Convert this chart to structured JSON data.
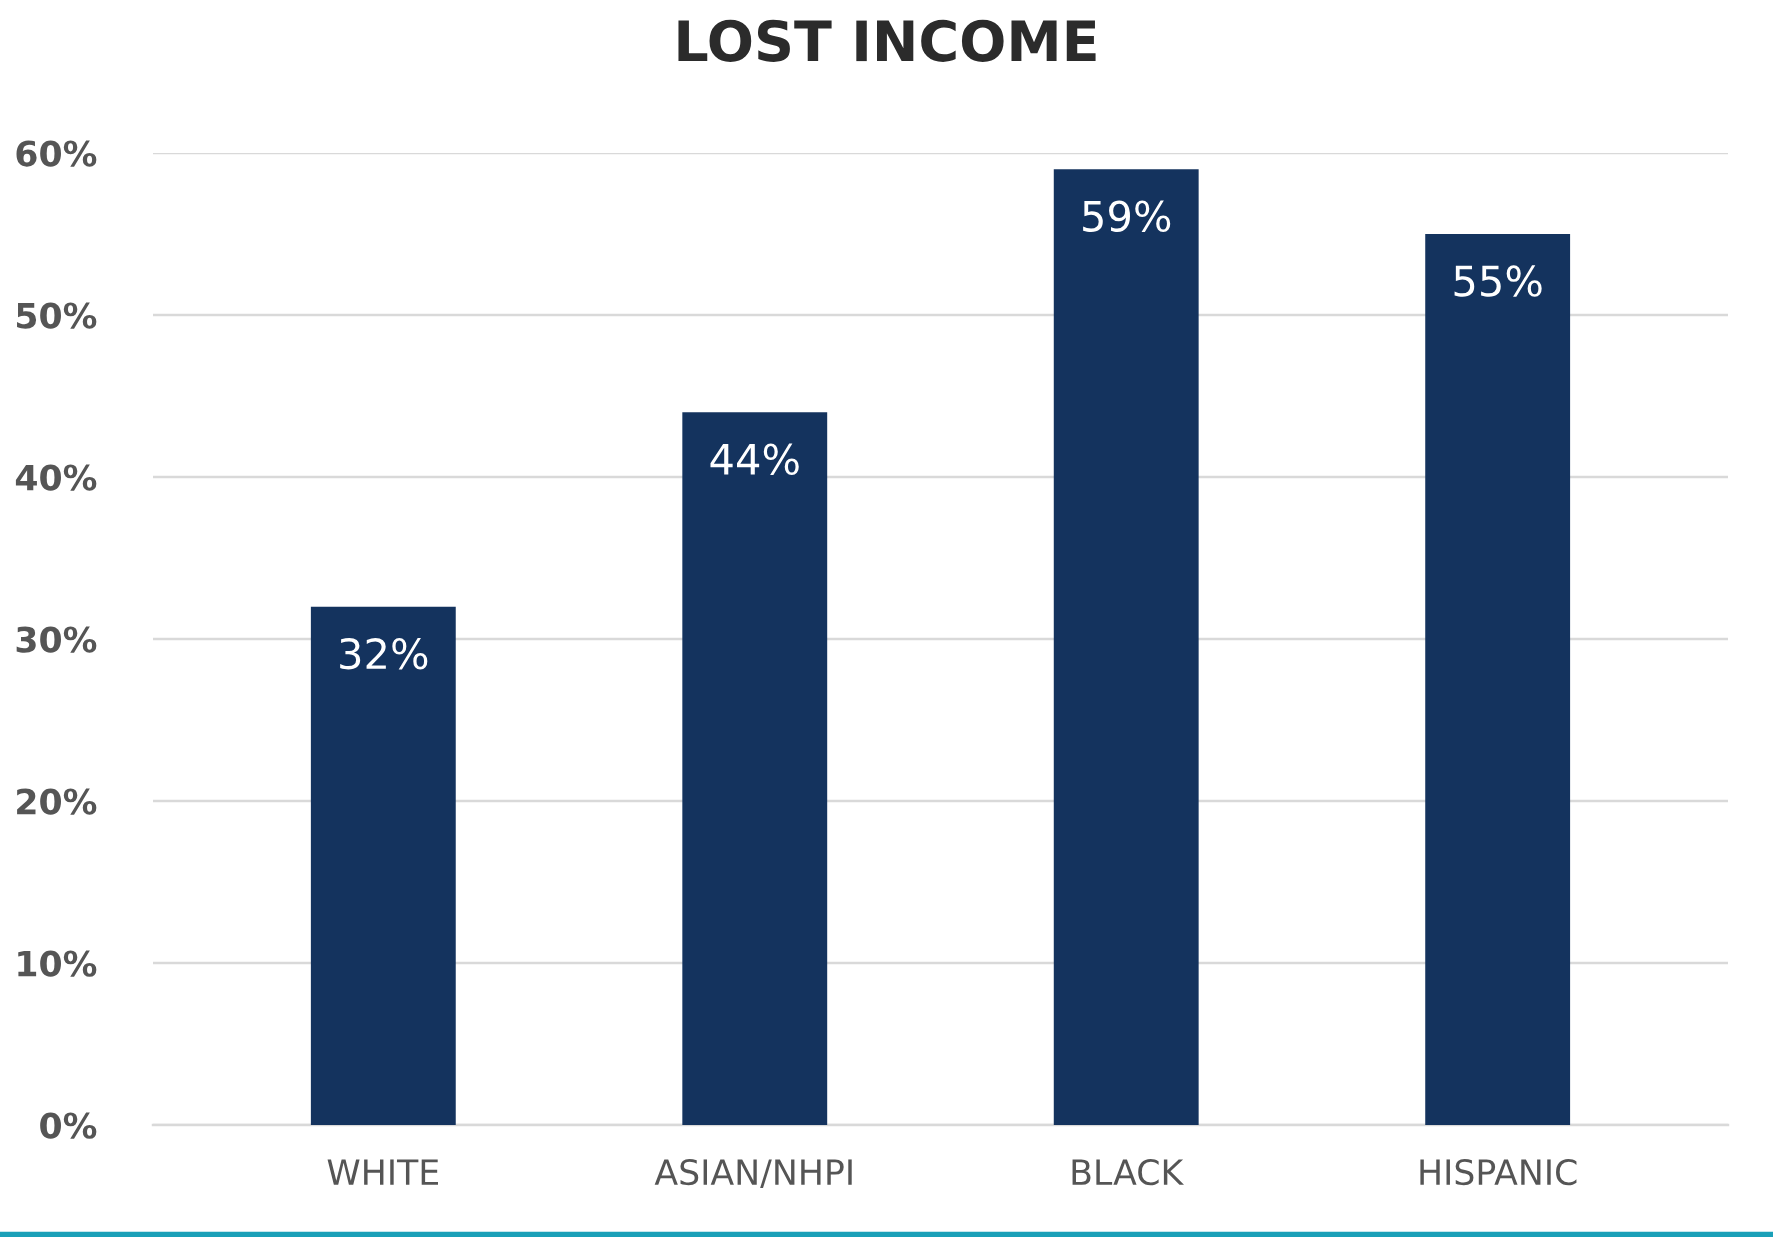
{
  "chart_data": {
    "type": "bar",
    "title": "LOST INCOME",
    "categories": [
      "WHITE",
      "ASIAN/NHPI",
      "BLACK",
      "HISPANIC"
    ],
    "values": [
      32,
      44,
      59,
      55
    ],
    "color": "#14335e",
    "value_labels": [
      "32%",
      "44%",
      "59%",
      "55%"
    ],
    "ylim": [
      0,
      60
    ],
    "yticks": [
      {
        "value": 0,
        "label": "0%"
      },
      {
        "value": 10,
        "label": "10%"
      },
      {
        "value": 20,
        "label": "20%"
      },
      {
        "value": 30,
        "label": "30%"
      },
      {
        "value": 40,
        "label": "40%"
      },
      {
        "value": 50,
        "label": "50%"
      },
      {
        "value": 60,
        "label": "60%"
      }
    ],
    "grid": "y",
    "legend": false
  }
}
